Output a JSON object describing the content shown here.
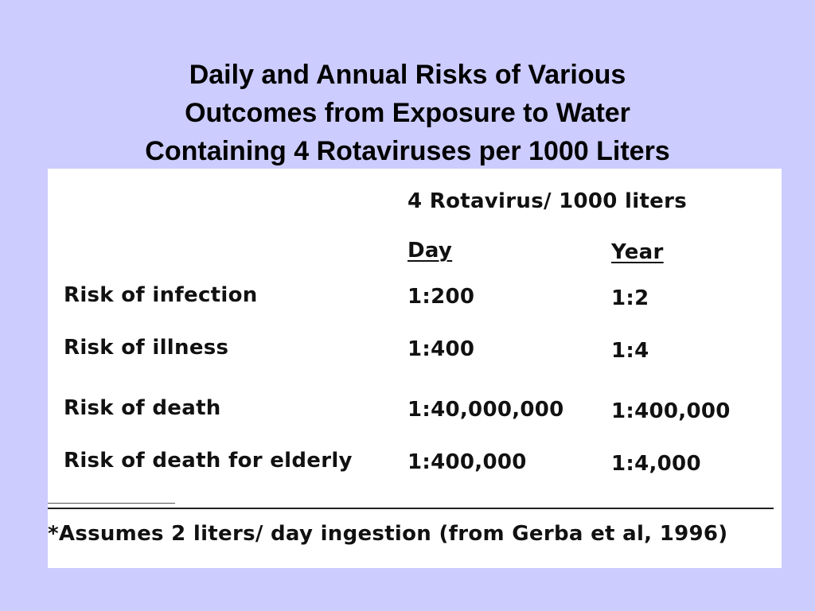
{
  "slide": {
    "title_lines": [
      "Daily and Annual Risks of Various",
      "Outcomes from Exposure to Water",
      "Containing 4  Rotaviruses per 1000 Liters"
    ]
  },
  "table": {
    "super_header": "4 Rotavirus/ 1000 liters",
    "columns": [
      "Day",
      "Year"
    ],
    "rows": [
      {
        "label": "Risk of infection",
        "day": "1:200",
        "year": "1:2"
      },
      {
        "label": "Risk of illness",
        "day": "1:400",
        "year": "1:4"
      },
      {
        "label": "Risk of death",
        "day": "1:40,000,000",
        "year": "1:400,000"
      },
      {
        "label": "Risk of death for elderly",
        "day": "1:400,000",
        "year": "1:4,000"
      }
    ],
    "footnote": "*Assumes 2 liters/ day  ingestion  (from Gerba et al, 1996)"
  }
}
